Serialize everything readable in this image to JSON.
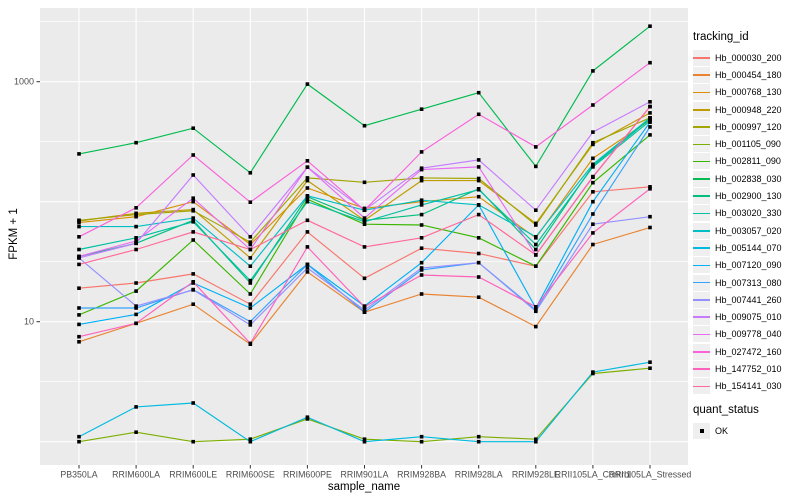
{
  "figure": {
    "panel_color": "#EBEBEB",
    "grid_color": "#FFFFFF",
    "axis_text_color": "#4D4D4D",
    "tick_color": "#333333",
    "point_color": "#000000",
    "legend_key_color": "#EFEFEF"
  },
  "legend": {
    "tracking_title": "tracking_id",
    "quant_title": "quant_status",
    "quant_items": [
      {
        "label": "OK",
        "marker": "black-square"
      }
    ]
  },
  "chart_data": {
    "type": "line",
    "title": "",
    "xlabel": "sample_name",
    "ylabel": "FPKM + 1",
    "y_scale": "log10",
    "y_ticks": [
      10,
      1000
    ],
    "y_tick_labels": [
      "10",
      "1000"
    ],
    "ylim": [
      0.64,
      4100
    ],
    "grid": true,
    "legend_title": "tracking_id",
    "legend_position": "right",
    "point_marker": "small black square (quant_status = OK)",
    "x_categories": [
      "PB350LA",
      "RRIM600LA",
      "RRIM600LE",
      "RRIM600SE",
      "RRIM600PE",
      "RRIM901LA",
      "RRIM928BA",
      "RRIM928LA",
      "RRIM928LE",
      "RRII105LA_Control",
      "RRII105LA_Stressed"
    ],
    "series": [
      {
        "name": "Hb_000030_200",
        "color": "#F8766D",
        "values": [
          19,
          21,
          25,
          14,
          56,
          23,
          41,
          37,
          29,
          121,
          133
        ]
      },
      {
        "name": "Hb_000454_180",
        "color": "#EA8331",
        "values": [
          6.8,
          9.7,
          14,
          6.5,
          26,
          12,
          17,
          16,
          9.1,
          44,
          61
        ]
      },
      {
        "name": "Hb_000768_130",
        "color": "#D89000",
        "values": [
          67,
          75,
          100,
          44,
          130,
          88,
          100,
          110,
          50,
          230,
          480
        ]
      },
      {
        "name": "Hb_000948_220",
        "color": "#C09B00",
        "values": [
          69,
          80,
          86,
          34,
          150,
          70,
          150,
          150,
          66,
          300,
          550
        ]
      },
      {
        "name": "Hb_000997_120",
        "color": "#A3A500",
        "values": [
          70,
          78,
          84,
          46,
          158,
          145,
          158,
          156,
          64,
          310,
          500
        ]
      },
      {
        "name": "Hb_001105_090",
        "color": "#7CAE00",
        "values": [
          1.0,
          1.2,
          1.0,
          1.05,
          1.55,
          1.05,
          1.0,
          1.1,
          1.05,
          3.7,
          4.1
        ]
      },
      {
        "name": "Hb_002811_090",
        "color": "#39B600",
        "values": [
          11.4,
          18,
          48,
          17,
          105,
          65,
          64,
          50,
          29,
          144,
          360
        ]
      },
      {
        "name": "Hb_002838_030",
        "color": "#00BB4E",
        "values": [
          250,
          310,
          410,
          174,
          955,
          430,
          590,
          810,
          197,
          1230,
          2900
        ]
      },
      {
        "name": "Hb_002900_130",
        "color": "#00BF7D",
        "values": [
          35,
          45,
          70,
          21,
          110,
          70,
          78,
          128,
          40,
          200,
          490
        ]
      },
      {
        "name": "Hb_003020_330",
        "color": "#00C1A3",
        "values": [
          40,
          50,
          68,
          22,
          100,
          68,
          94,
          126,
          44,
          195,
          470
        ]
      },
      {
        "name": "Hb_003057_020",
        "color": "#00BFC4",
        "values": [
          62,
          62,
          73,
          29,
          112,
          85,
          103,
          94,
          51,
          205,
          500
        ]
      },
      {
        "name": "Hb_005144_070",
        "color": "#00BAE0",
        "values": [
          1.1,
          1.95,
          2.1,
          1.0,
          1.6,
          1.0,
          1.1,
          1.0,
          1.0,
          3.8,
          4.6
        ]
      },
      {
        "name": "Hb_007120_090",
        "color": "#00B0F6",
        "values": [
          9.5,
          11.5,
          21,
          13,
          30,
          13.5,
          31,
          94,
          13,
          100,
          460
        ]
      },
      {
        "name": "Hb_007313_080",
        "color": "#35A2FF",
        "values": [
          13,
          13,
          18.5,
          10,
          30,
          12,
          27,
          31,
          12.5,
          79,
          420
        ]
      },
      {
        "name": "Hb_007441_260",
        "color": "#9590FF",
        "values": [
          34,
          13.5,
          18.4,
          9.4,
          28,
          12.5,
          28,
          31,
          12.2,
          65,
          75
        ]
      },
      {
        "name": "Hb_009075_010",
        "color": "#C77CFF",
        "values": [
          34,
          45,
          167,
          51,
          194,
          85,
          190,
          223,
          85,
          380,
          680
        ]
      },
      {
        "name": "Hb_009778_040",
        "color": "#E76BF3",
        "values": [
          35,
          47,
          107,
          40,
          194,
          73,
          185,
          195,
          36,
          162,
          620
        ]
      },
      {
        "name": "Hb_027472_160",
        "color": "#FA62DB",
        "values": [
          51,
          89,
          245,
          99,
          219,
          85,
          260,
          535,
          286,
          640,
          1440
        ]
      },
      {
        "name": "Hb_147752_010",
        "color": "#FF62BC",
        "values": [
          7.5,
          9.7,
          21.5,
          6.6,
          42,
          13.3,
          24.5,
          23.6,
          13.3,
          55,
          128
        ]
      },
      {
        "name": "Hb_154141_030",
        "color": "#FF6A98",
        "values": [
          30,
          40,
          56,
          40,
          70,
          42,
          50,
          78,
          36,
          160,
          620
        ]
      }
    ]
  }
}
